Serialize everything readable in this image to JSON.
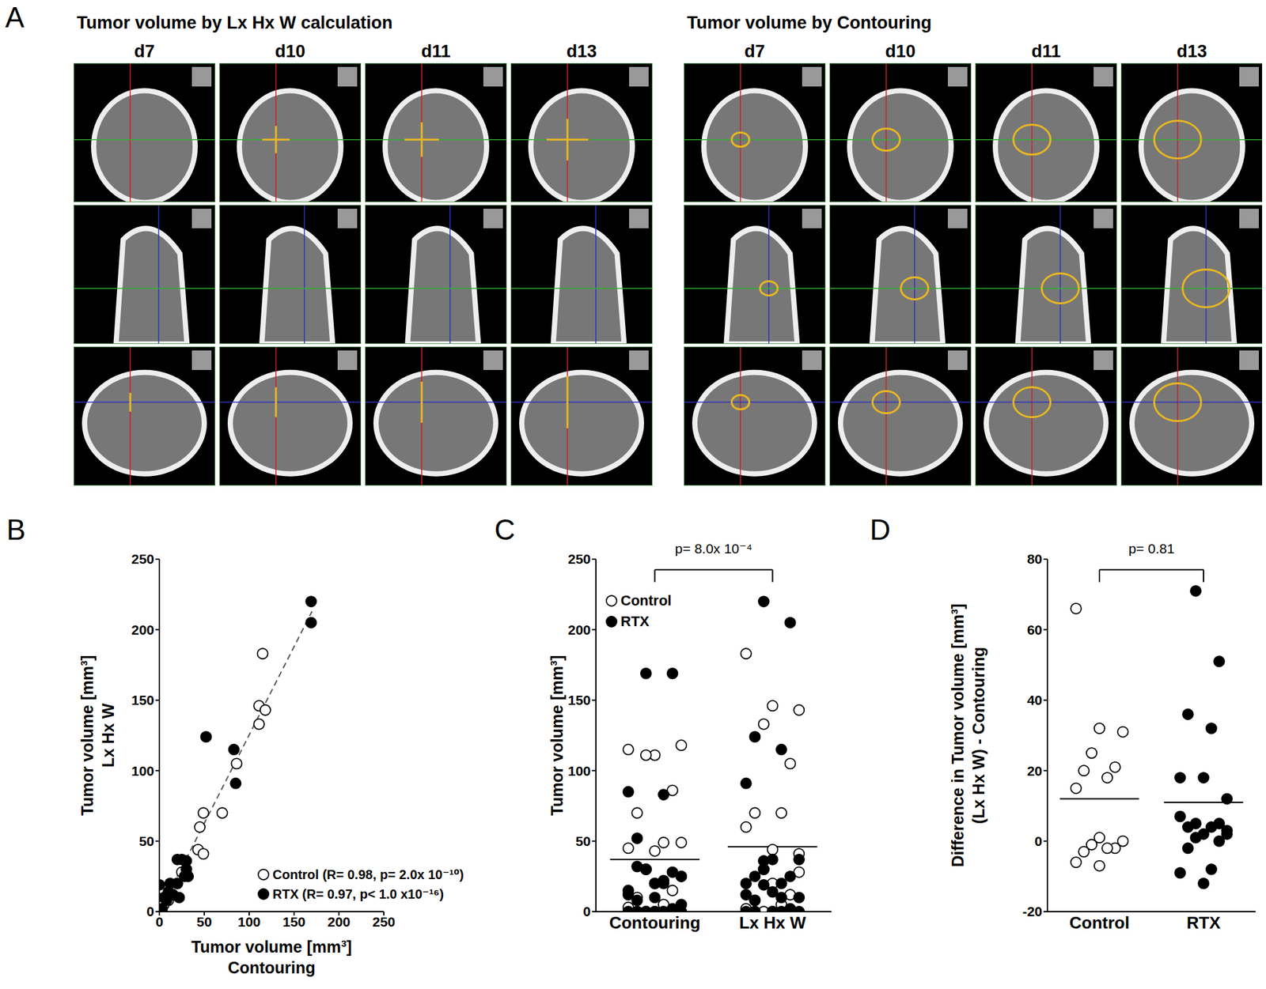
{
  "panel_A": {
    "panel_label": "A",
    "left_title": "Tumor volume by Lx Hx W calculation",
    "right_title": "Tumor volume by Contouring",
    "days": [
      "d7",
      "d10",
      "d11",
      "d13"
    ]
  },
  "chart_data": [
    {
      "panel_label": "B",
      "type": "scatter",
      "x_label": [
        "Tumor volume [mm³]",
        "Contouring"
      ],
      "y_label": [
        "Tumor volume [mm³]",
        "Lx Hx W"
      ],
      "xlim": [
        0,
        250
      ],
      "ylim": [
        0,
        250
      ],
      "xticks": [
        0,
        50,
        100,
        150,
        200,
        250
      ],
      "yticks": [
        0,
        50,
        100,
        150,
        200,
        250
      ],
      "legend": "lower right",
      "series": [
        {
          "name": "Control (R= 0.98, p= 2.0x 10⁻¹⁰)",
          "marker": "open_circle",
          "color": "#000000",
          "x": [
            115,
            111,
            118,
            111,
            86,
            70,
            49,
            45,
            43,
            49,
            30,
            15,
            10,
            5,
            3,
            20,
            25
          ],
          "y": [
            183,
            146,
            143,
            133,
            105,
            70,
            70,
            60,
            44,
            41,
            30,
            12,
            8,
            5,
            2,
            20,
            28
          ]
        },
        {
          "name": "RTX (R= 0.97, p< 1.0 x10⁻¹⁶)",
          "marker": "filled_circle",
          "color": "#000000",
          "x": [
            169,
            169,
            52,
            83,
            85,
            20,
            25,
            30,
            28,
            32,
            20,
            15,
            10,
            5,
            0,
            2,
            8,
            22,
            12,
            0,
            30
          ],
          "y": [
            220,
            205,
            124,
            115,
            91,
            37,
            37,
            36,
            25,
            25,
            20,
            12,
            14,
            10,
            19,
            2,
            8,
            10,
            20,
            0,
            30
          ]
        }
      ],
      "fit_line": {
        "x": [
          0,
          170
        ],
        "y": [
          0,
          213
        ],
        "line_style": "dashed",
        "color": "#555555"
      }
    },
    {
      "panel_label": "C",
      "type": "strip",
      "categories": [
        "Contouring",
        "Lx Hx W"
      ],
      "y_label": [
        "Tumor volume [mm³]"
      ],
      "ylim": [
        0,
        250
      ],
      "yticks": [
        0,
        50,
        100,
        150,
        200,
        250
      ],
      "legend": "upper left",
      "series": [
        {
          "name": "Control",
          "marker": "open_circle",
          "color": "#000000",
          "values": [
            [
              115,
              111,
              118,
              111,
              86,
              70,
              49,
              45,
              43,
              49,
              30,
              15,
              10,
              5,
              3,
              20,
              25,
              0,
              0,
              0
            ],
            [
              183,
              146,
              143,
              133,
              105,
              70,
              70,
              60,
              44,
              41,
              30,
              12,
              8,
              5,
              2,
              20,
              28,
              0,
              0,
              0
            ]
          ]
        },
        {
          "name": "RTX",
          "marker": "filled_circle",
          "color": "#000000",
          "values": [
            [
              169,
              169,
              52,
              83,
              85,
              20,
              25,
              30,
              28,
              32,
              20,
              15,
              10,
              5,
              0,
              2,
              8,
              22,
              12,
              0,
              0,
              30,
              0,
              0,
              0,
              0,
              0
            ],
            [
              220,
              205,
              124,
              115,
              91,
              37,
              37,
              36,
              25,
              25,
              20,
              12,
              14,
              10,
              19,
              2,
              8,
              10,
              20,
              0,
              0,
              30,
              0,
              0,
              0,
              0,
              0
            ]
          ]
        }
      ],
      "means": [
        37,
        46
      ],
      "annotations": [
        {
          "text": "p= 8.0x 10⁻⁴",
          "between": [
            0,
            1
          ]
        }
      ]
    },
    {
      "panel_label": "D",
      "type": "strip",
      "categories": [
        "Control",
        "RTX"
      ],
      "y_label": [
        "Difference in Tumor volume [mm³]",
        "(Lx Hx W) - Contouring"
      ],
      "ylim": [
        -20,
        80
      ],
      "yticks": [
        -20,
        0,
        20,
        40,
        60,
        80
      ],
      "series": [
        {
          "marker": "open_circle",
          "color": "#000000",
          "values": [
            [
              66,
              32,
              31,
              25,
              21,
              20,
              18,
              15,
              1,
              0,
              -1,
              -2,
              -3,
              -2,
              -6,
              -7
            ],
            []
          ]
        },
        {
          "marker": "filled_circle",
          "color": "#000000",
          "values": [
            [],
            [
              71,
              51,
              36,
              32,
              18,
              18,
              12,
              5,
              5,
              4,
              4,
              7,
              2,
              2,
              1,
              0,
              -2,
              -8,
              -9,
              -12,
              3
            ]
          ]
        }
      ],
      "means": [
        12,
        11
      ],
      "annotations": [
        {
          "text": "p= 0.81",
          "between": [
            0,
            1
          ]
        }
      ]
    }
  ]
}
